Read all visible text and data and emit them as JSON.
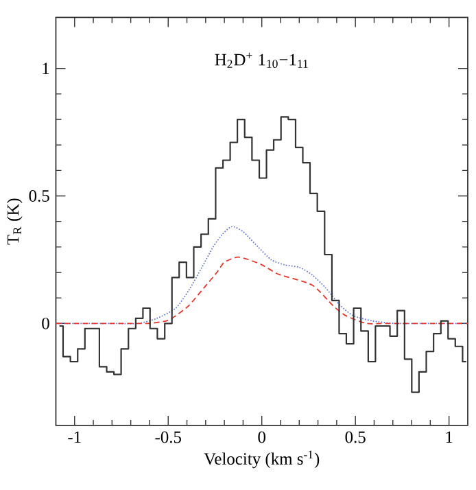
{
  "chart_data": {
    "type": "step",
    "title": "H$_{2}$D$^{+}$ 1$_{10}$−1$_{11}$",
    "xlabel": "Velocity (km s$^{-1}$)",
    "ylabel": "T$_{R}$ (K)",
    "xlim": [
      -1.1,
      1.1
    ],
    "ylim": [
      -0.4,
      1.2
    ],
    "xticks": [
      -1,
      -0.5,
      0,
      0.5,
      1
    ],
    "yticks": [
      0,
      0.5,
      1
    ],
    "marker": "none",
    "grid": false,
    "series": [
      {
        "color": "#333333",
        "line_style": "solid",
        "x": [
          -1.081,
          -1.042,
          -1.003,
          -0.964,
          -0.926,
          -0.887,
          -0.848,
          -0.809,
          -0.771,
          -0.732,
          -0.693,
          -0.654,
          -0.616,
          -0.578,
          -0.538,
          -0.499,
          -0.461,
          -0.422,
          -0.383,
          -0.344,
          -0.305,
          -0.266,
          -0.227,
          -0.188,
          -0.15,
          -0.111,
          -0.072,
          -0.033,
          0.006,
          0.044,
          0.083,
          0.122,
          0.161,
          0.2,
          0.238,
          0.277,
          0.316,
          0.355,
          0.394,
          0.432,
          0.471,
          0.51,
          0.549,
          0.588,
          0.626,
          0.665,
          0.704,
          0.743,
          0.782,
          0.82,
          0.859,
          0.898,
          0.937,
          0.976,
          1.014,
          1.053,
          1.092
        ],
        "values": [
          -0.01,
          -0.13,
          -0.15,
          -0.1,
          -0.02,
          -0.02,
          -0.17,
          -0.19,
          -0.2,
          -0.1,
          -0.02,
          0.02,
          0.06,
          -0.02,
          -0.06,
          0.0,
          0.18,
          0.24,
          0.18,
          0.3,
          0.35,
          0.41,
          0.61,
          0.64,
          0.71,
          0.8,
          0.73,
          0.64,
          0.57,
          0.68,
          0.72,
          0.81,
          0.8,
          0.69,
          0.63,
          0.51,
          0.44,
          0.27,
          0.09,
          -0.04,
          -0.08,
          0.06,
          -0.03,
          -0.15,
          -0.01,
          -0.01,
          -0.05,
          0.05,
          -0.14,
          -0.27,
          -0.19,
          -0.11,
          -0.04,
          0.01,
          -0.06,
          -0.09,
          -0.15
        ]
      },
      {
        "type": "line",
        "color": "#5b6fd6",
        "line_style": "dotted",
        "x": [
          -1.1,
          -0.8,
          -0.66,
          -0.56,
          -0.46,
          -0.39,
          -0.32,
          -0.26,
          -0.21,
          -0.16,
          -0.1,
          -0.02,
          0.05,
          0.12,
          0.2,
          0.27,
          0.34,
          0.42,
          0.49,
          0.59,
          0.71,
          0.9,
          1.1
        ],
        "values": [
          0,
          0,
          0.0,
          0.02,
          0.06,
          0.13,
          0.22,
          0.3,
          0.35,
          0.38,
          0.36,
          0.3,
          0.25,
          0.23,
          0.22,
          0.19,
          0.14,
          0.07,
          0.03,
          0.01,
          0,
          0,
          0
        ]
      },
      {
        "type": "line",
        "color": "#e8352b",
        "line_style": "dashed",
        "x": [
          -1.1,
          -0.8,
          -0.61,
          -0.51,
          -0.46,
          -0.39,
          -0.32,
          -0.24,
          -0.2,
          -0.13,
          -0.07,
          0.0,
          0.07,
          0.1,
          0.27,
          0.38,
          0.45,
          0.56,
          0.66,
          0.9,
          1.1
        ],
        "values": [
          0,
          0,
          0,
          0.01,
          0.03,
          0.07,
          0.13,
          0.2,
          0.24,
          0.26,
          0.25,
          0.23,
          0.2,
          0.19,
          0.15,
          0.07,
          0.03,
          0.0,
          0,
          0,
          0
        ]
      }
    ]
  }
}
